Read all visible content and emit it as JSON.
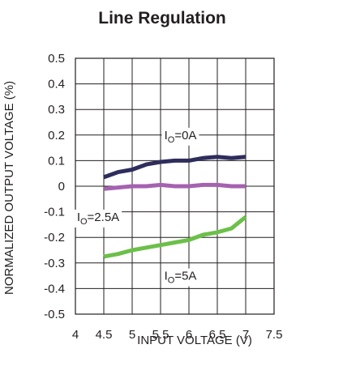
{
  "chart_data": {
    "type": "line",
    "title": "Line Regulation",
    "xlabel": "INPUT VOLTAGE (V)",
    "ylabel": "NORMALIZED OUTPUT VOLTAGE (%)",
    "xlim": [
      4,
      7.5
    ],
    "ylim": [
      -0.5,
      0.5
    ],
    "x_ticks": [
      "4",
      "4.5",
      "5",
      "5.5",
      "6",
      "6.5",
      "7",
      "7.5"
    ],
    "y_ticks": [
      "0.5",
      "0.4",
      "0.3",
      "0.2",
      "0.1",
      "0",
      "-0.1",
      "-0.2",
      "-0.3",
      "-0.4",
      "-0.5"
    ],
    "grid": true,
    "series": [
      {
        "name": "I_O=0A",
        "label_main": "I",
        "label_sub": "O",
        "label_rest": "=0A",
        "color": "#2e2d5c",
        "x": [
          4.5,
          4.75,
          5.0,
          5.25,
          5.5,
          5.75,
          6.0,
          6.25,
          6.5,
          6.75,
          7.0
        ],
        "y": [
          0.035,
          0.055,
          0.065,
          0.085,
          0.095,
          0.1,
          0.1,
          0.11,
          0.115,
          0.11,
          0.115
        ]
      },
      {
        "name": "I_O=2.5A",
        "label_main": "I",
        "label_sub": "O",
        "label_rest": "=2.5A",
        "color": "#a562b0",
        "x": [
          4.5,
          4.75,
          5.0,
          5.25,
          5.5,
          5.75,
          6.0,
          6.25,
          6.5,
          6.75,
          7.0
        ],
        "y": [
          -0.01,
          -0.005,
          0.0,
          0.0,
          0.005,
          0.0,
          0.0,
          0.005,
          0.005,
          0.0,
          0.0
        ]
      },
      {
        "name": "I_O=5A",
        "label_main": "I",
        "label_sub": "O",
        "label_rest": "=5A",
        "color": "#6cc04a",
        "x": [
          4.5,
          4.75,
          5.0,
          5.25,
          5.5,
          5.75,
          6.0,
          6.25,
          6.5,
          6.75,
          7.0
        ],
        "y": [
          -0.275,
          -0.265,
          -0.25,
          -0.24,
          -0.23,
          -0.22,
          -0.21,
          -0.19,
          -0.18,
          -0.165,
          -0.12
        ]
      }
    ]
  }
}
